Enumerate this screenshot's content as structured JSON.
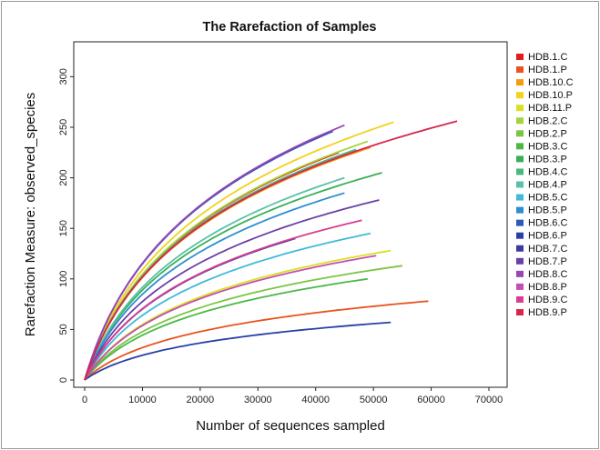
{
  "chart_data": {
    "type": "line",
    "title": "The Rarefaction of Samples",
    "xlabel": "Number of sequences sampled",
    "ylabel": "Rarefaction Measure: observed_species",
    "xlim": [
      0,
      70000
    ],
    "ylim": [
      0,
      330
    ],
    "xticks": [
      0,
      10000,
      20000,
      30000,
      40000,
      50000,
      60000,
      70000
    ],
    "yticks": [
      0,
      50,
      100,
      150,
      200,
      250,
      300
    ],
    "grid": false,
    "legend_position": "right",
    "series": [
      {
        "name": "HDB.1.C",
        "color": "#e41a1c",
        "final_x": 44000,
        "final_y": 225
      },
      {
        "name": "HDB.1.P",
        "color": "#e8531f",
        "final_x": 59500,
        "final_y": 78
      },
      {
        "name": "HDB.10.C",
        "color": "#f39c12",
        "final_x": 49500,
        "final_y": 230
      },
      {
        "name": "HDB.10.P",
        "color": "#f1d21c",
        "final_x": 53500,
        "final_y": 255
      },
      {
        "name": "HDB.11.P",
        "color": "#d9e021",
        "final_x": 53000,
        "final_y": 128
      },
      {
        "name": "HDB.2.C",
        "color": "#a6d33a",
        "final_x": 49000,
        "final_y": 236
      },
      {
        "name": "HDB.2.P",
        "color": "#7dc443",
        "final_x": 55000,
        "final_y": 113
      },
      {
        "name": "HDB.3.C",
        "color": "#4cb847",
        "final_x": 49000,
        "final_y": 100
      },
      {
        "name": "HDB.3.P",
        "color": "#3aaf55",
        "final_x": 51500,
        "final_y": 205
      },
      {
        "name": "HDB.4.C",
        "color": "#45b97c",
        "final_x": 47000,
        "final_y": 228
      },
      {
        "name": "HDB.4.P",
        "color": "#5cc0a8",
        "final_x": 45000,
        "final_y": 200
      },
      {
        "name": "HDB.5.C",
        "color": "#41b9d9",
        "final_x": 49500,
        "final_y": 145
      },
      {
        "name": "HDB.5.P",
        "color": "#2c8fd1",
        "final_x": 45000,
        "final_y": 185
      },
      {
        "name": "HDB.6.C",
        "color": "#2b59b5",
        "final_x": 43000,
        "final_y": 246
      },
      {
        "name": "HDB.6.P",
        "color": "#2a3fa7",
        "final_x": 53000,
        "final_y": 57
      },
      {
        "name": "HDB.7.C",
        "color": "#3d3aa0",
        "final_x": 36500,
        "final_y": 140
      },
      {
        "name": "HDB.7.P",
        "color": "#6b3fa8",
        "final_x": 51000,
        "final_y": 178
      },
      {
        "name": "HDB.8.C",
        "color": "#9b44b3",
        "final_x": 45000,
        "final_y": 252
      },
      {
        "name": "HDB.8.P",
        "color": "#c24fb2",
        "final_x": 50500,
        "final_y": 123
      },
      {
        "name": "HDB.9.C",
        "color": "#d63f8f",
        "final_x": 48000,
        "final_y": 158
      },
      {
        "name": "HDB.9.P",
        "color": "#d7264b",
        "final_x": 64500,
        "final_y": 256
      }
    ]
  }
}
